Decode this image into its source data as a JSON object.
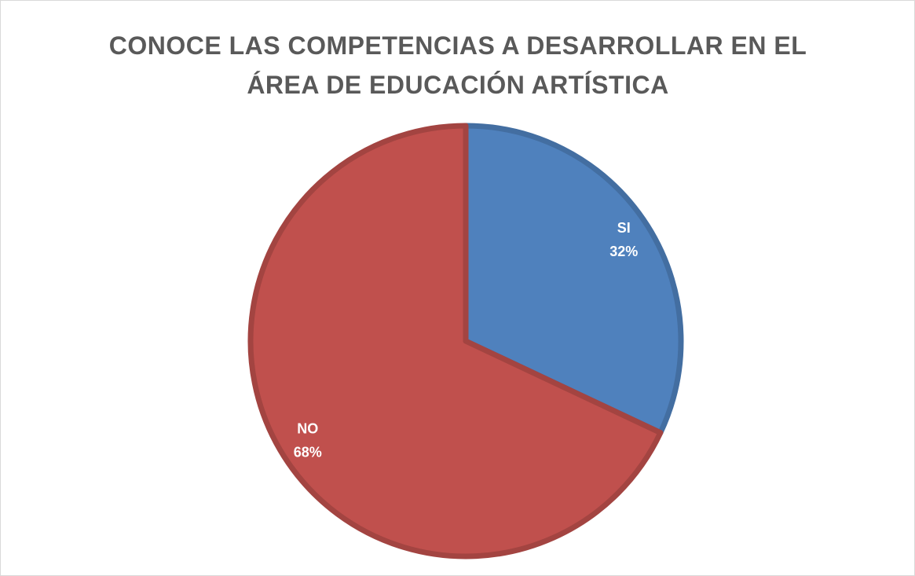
{
  "chart_data": {
    "type": "pie",
    "title": "CONOCE LAS COMPETENCIAS A DESARROLLAR EN EL ÁREA DE EDUCACIÓN ARTÍSTICA",
    "categories": [
      "SI",
      "NO"
    ],
    "values": [
      32,
      68
    ],
    "value_labels": [
      "32%",
      "68%"
    ],
    "colors": [
      "#4f81bd",
      "#c0504d"
    ]
  }
}
